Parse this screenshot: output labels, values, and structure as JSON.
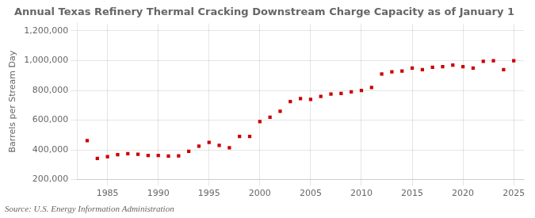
{
  "chart_data": {
    "type": "scatter",
    "title": "Annual Texas Refinery Thermal Cracking Downstream Charge Capacity as of January 1",
    "ylabel": "Barrels per Stream Day",
    "annotations": [
      "Source: U.S. Energy Information Administration"
    ],
    "x": [
      1983,
      1984,
      1985,
      1986,
      1987,
      1988,
      1989,
      1990,
      1991,
      1992,
      1993,
      1994,
      1995,
      1996,
      1997,
      1998,
      1999,
      2000,
      2001,
      2002,
      2003,
      2004,
      2005,
      2006,
      2007,
      2008,
      2009,
      2010,
      2011,
      2012,
      2013,
      2014,
      2015,
      2016,
      2017,
      2018,
      2019,
      2020,
      2021,
      2022,
      2023,
      2024,
      2025
    ],
    "values": [
      462000,
      342000,
      355000,
      368000,
      375000,
      370000,
      363000,
      363000,
      358000,
      360000,
      390000,
      425000,
      450000,
      430000,
      415000,
      490000,
      490000,
      590000,
      620000,
      660000,
      725000,
      745000,
      740000,
      760000,
      775000,
      780000,
      790000,
      800000,
      820000,
      910000,
      925000,
      930000,
      950000,
      940000,
      955000,
      960000,
      970000,
      960000,
      950000,
      995000,
      1000000,
      940000,
      1000000
    ],
    "color": "#cc0000",
    "marker": "square",
    "xlim": [
      1982,
      2026
    ],
    "xticks": [
      1985,
      1990,
      1995,
      2000,
      2005,
      2010,
      2015,
      2020,
      2025
    ],
    "ylim": [
      200000,
      1250000
    ],
    "yticks": [
      {
        "value": 200000,
        "label": "200,000"
      },
      {
        "value": 400000,
        "label": "400,000"
      },
      {
        "value": 600000,
        "label": "600,000"
      },
      {
        "value": 800000,
        "label": "800,000"
      },
      {
        "value": 1000000,
        "label": "1,000,000"
      },
      {
        "value": 1200000,
        "label": "1,200,000"
      }
    ],
    "grid": true
  }
}
